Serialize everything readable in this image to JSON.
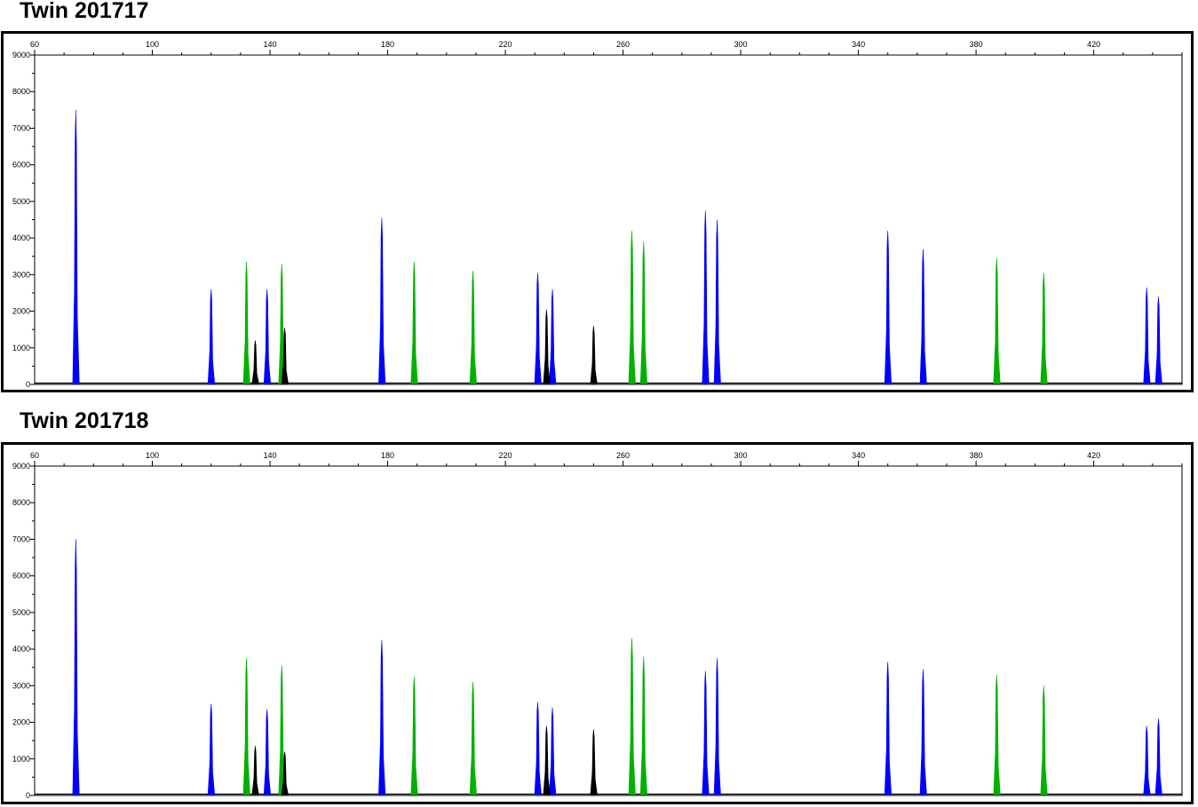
{
  "panels": [
    {
      "title": "Twin 201717",
      "chart_data": {
        "type": "line",
        "title": "Twin 201717",
        "xlabel": "",
        "ylabel": "",
        "xlim": [
          60,
          450
        ],
        "ylim": [
          0,
          9000
        ],
        "x_ticks": [
          60,
          100,
          140,
          180,
          220,
          260,
          300,
          340,
          380,
          420
        ],
        "y_ticks": [
          0,
          1000,
          2000,
          3000,
          4000,
          5000,
          6000,
          7000,
          8000,
          9000
        ],
        "grid": false,
        "series": [
          {
            "color": "#0000ff",
            "peaks": [
              {
                "x": 74,
                "y": 7500
              },
              {
                "x": 120,
                "y": 2600
              },
              {
                "x": 139,
                "y": 2600
              },
              {
                "x": 178,
                "y": 4550
              },
              {
                "x": 231,
                "y": 3050
              },
              {
                "x": 236,
                "y": 2600
              },
              {
                "x": 288,
                "y": 4750
              },
              {
                "x": 292,
                "y": 4500
              },
              {
                "x": 350,
                "y": 4200
              },
              {
                "x": 362,
                "y": 3700
              },
              {
                "x": 438,
                "y": 2650
              },
              {
                "x": 442,
                "y": 2400
              }
            ]
          },
          {
            "color": "#00b000",
            "peaks": [
              {
                "x": 132,
                "y": 3350
              },
              {
                "x": 144,
                "y": 3300
              },
              {
                "x": 189,
                "y": 3350
              },
              {
                "x": 209,
                "y": 3100
              },
              {
                "x": 263,
                "y": 4200
              },
              {
                "x": 267,
                "y": 3900
              },
              {
                "x": 387,
                "y": 3450
              },
              {
                "x": 403,
                "y": 3050
              }
            ]
          },
          {
            "color": "#000000",
            "peaks": [
              {
                "x": 135,
                "y": 1200
              },
              {
                "x": 145,
                "y": 1550
              },
              {
                "x": 234,
                "y": 2050
              },
              {
                "x": 250,
                "y": 1600
              }
            ]
          }
        ]
      }
    },
    {
      "title": "Twin 201718",
      "chart_data": {
        "type": "line",
        "title": "Twin 201718",
        "xlabel": "",
        "ylabel": "",
        "xlim": [
          60,
          450
        ],
        "ylim": [
          0,
          9000
        ],
        "x_ticks": [
          60,
          100,
          140,
          180,
          220,
          260,
          300,
          340,
          380,
          420
        ],
        "y_ticks": [
          0,
          1000,
          2000,
          3000,
          4000,
          5000,
          6000,
          7000,
          8000,
          9000
        ],
        "grid": false,
        "series": [
          {
            "color": "#0000ff",
            "peaks": [
              {
                "x": 74,
                "y": 7000
              },
              {
                "x": 120,
                "y": 2500
              },
              {
                "x": 139,
                "y": 2350
              },
              {
                "x": 178,
                "y": 4250
              },
              {
                "x": 231,
                "y": 2550
              },
              {
                "x": 236,
                "y": 2400
              },
              {
                "x": 288,
                "y": 3400
              },
              {
                "x": 292,
                "y": 3750
              },
              {
                "x": 350,
                "y": 3650
              },
              {
                "x": 362,
                "y": 3450
              },
              {
                "x": 438,
                "y": 1900
              },
              {
                "x": 442,
                "y": 2100
              }
            ]
          },
          {
            "color": "#00b000",
            "peaks": [
              {
                "x": 132,
                "y": 3750
              },
              {
                "x": 144,
                "y": 3550
              },
              {
                "x": 189,
                "y": 3250
              },
              {
                "x": 209,
                "y": 3100
              },
              {
                "x": 263,
                "y": 4300
              },
              {
                "x": 267,
                "y": 3800
              },
              {
                "x": 387,
                "y": 3300
              },
              {
                "x": 403,
                "y": 3000
              }
            ]
          },
          {
            "color": "#000000",
            "peaks": [
              {
                "x": 135,
                "y": 1350
              },
              {
                "x": 145,
                "y": 1200
              },
              {
                "x": 234,
                "y": 1900
              },
              {
                "x": 250,
                "y": 1800
              }
            ]
          }
        ]
      }
    }
  ]
}
